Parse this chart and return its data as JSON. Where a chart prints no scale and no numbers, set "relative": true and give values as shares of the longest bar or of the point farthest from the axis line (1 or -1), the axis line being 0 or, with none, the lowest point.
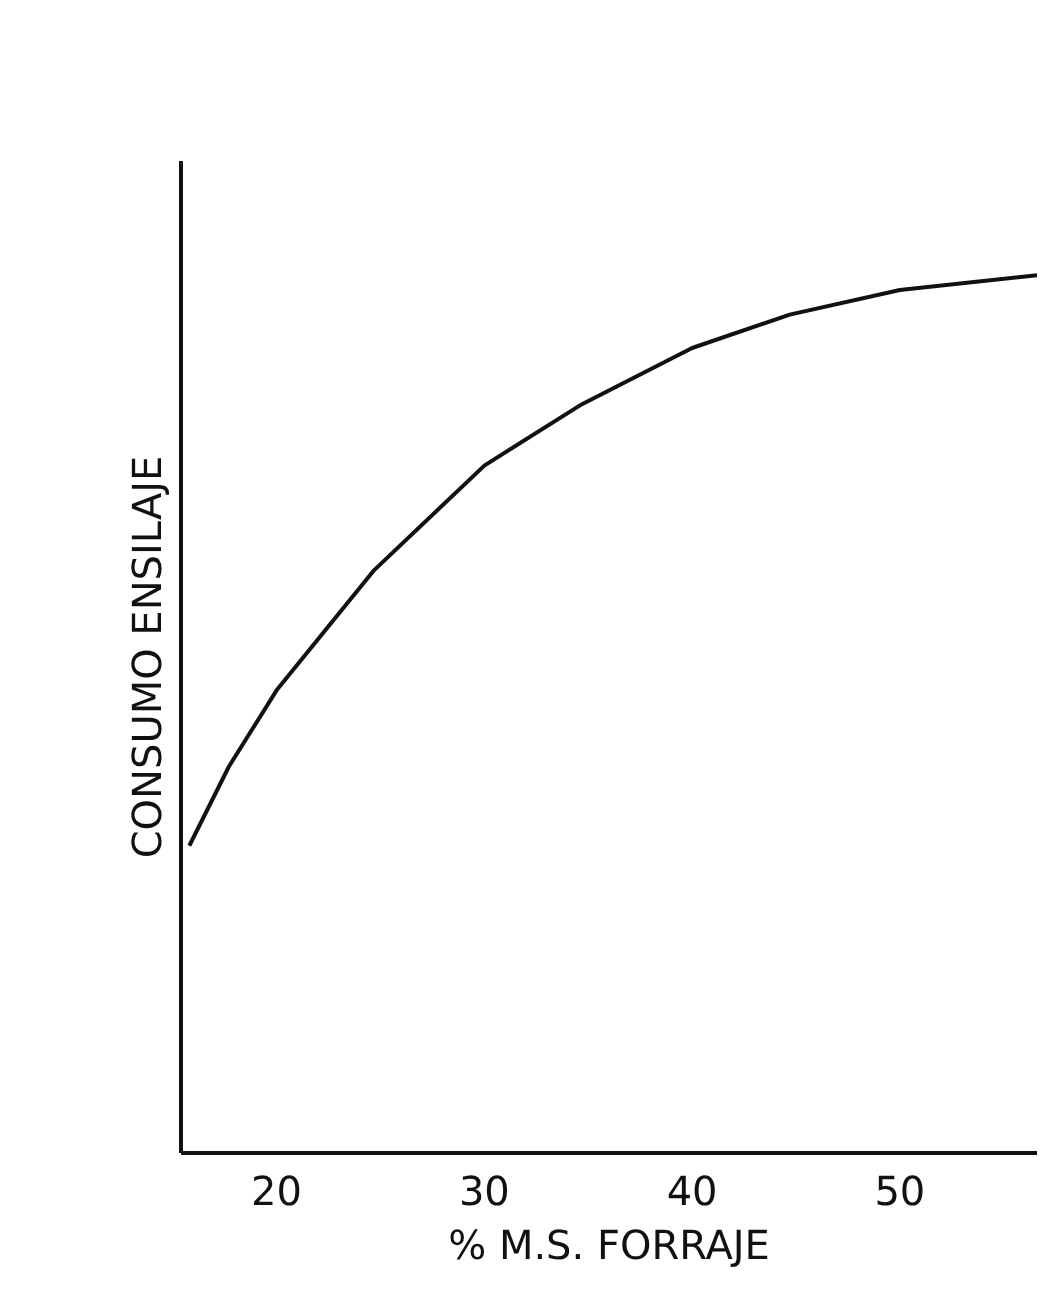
{
  "chart_data": {
    "type": "line",
    "relative": true,
    "xlabel": "% M.S. FORRAJE",
    "ylabel": "CONSUMO ENSILAJE",
    "x": [
      15.8,
      17.7,
      20,
      24.7,
      30,
      34.7,
      40,
      44.7,
      50,
      56.6
    ],
    "series": [
      {
        "color": "#111111",
        "values": [
          0.35,
          0.44,
          0.527,
          0.664,
          0.783,
          0.853,
          0.917,
          0.955,
          0.983,
          1.0
        ]
      }
    ],
    "xlim": [
      15.4,
      56.6
    ],
    "xticks": [
      20,
      30,
      40,
      50
    ],
    "grid": false,
    "marker": "none",
    "line_style": "solid"
  }
}
